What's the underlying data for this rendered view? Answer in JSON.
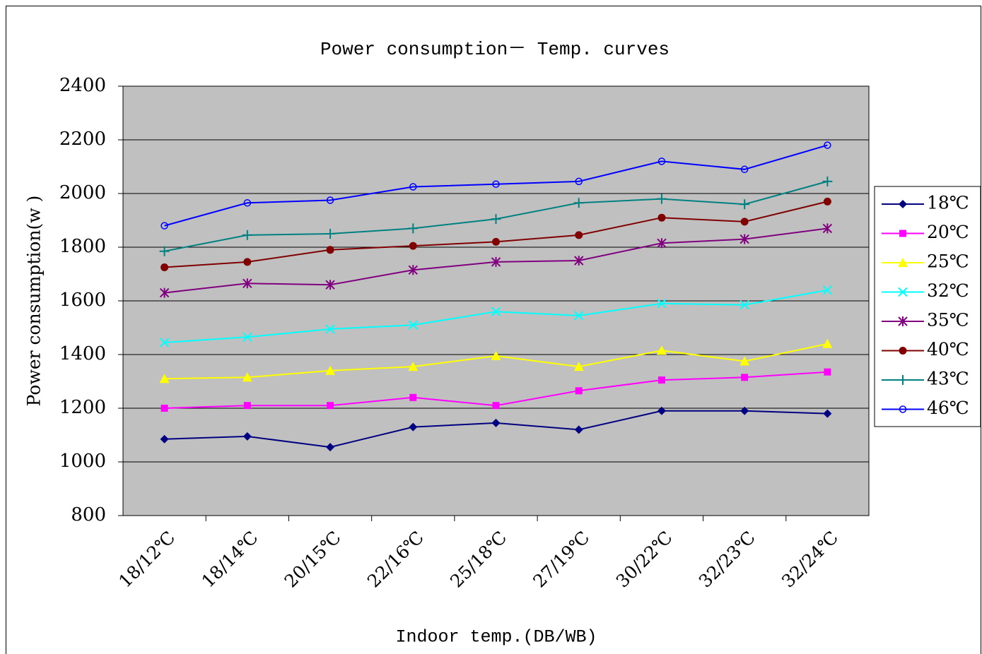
{
  "chart_data": {
    "type": "line",
    "title": "Power consumption－ Temp. curves",
    "y_label": "Power consumption(w )",
    "x_label": "Indoor temp.(DB/WB)",
    "categories": [
      "18/12℃",
      "18/14℃",
      "20/15℃",
      "22/16℃",
      "25/18℃",
      "27/19℃",
      "30/22℃",
      "32/23℃",
      "32/24℃"
    ],
    "ylim": [
      800,
      2400
    ],
    "yticks": [
      800,
      1000,
      1200,
      1400,
      1600,
      1800,
      2000,
      2200,
      2400
    ],
    "grid": true,
    "legend": "right",
    "series": [
      {
        "name": "18℃",
        "color": "#000080",
        "marker": "diamond",
        "values": [
          1085,
          1095,
          1055,
          1130,
          1145,
          1120,
          1190,
          1190,
          1180
        ]
      },
      {
        "name": "20℃",
        "color": "#ff00ff",
        "marker": "square",
        "values": [
          1200,
          1210,
          1210,
          1240,
          1210,
          1265,
          1305,
          1315,
          1335
        ]
      },
      {
        "name": "25℃",
        "color": "#ffff00",
        "marker": "triangle",
        "values": [
          1310,
          1315,
          1340,
          1355,
          1395,
          1355,
          1415,
          1375,
          1440
        ]
      },
      {
        "name": "32℃",
        "color": "#00ffff",
        "marker": "x",
        "values": [
          1445,
          1465,
          1495,
          1510,
          1560,
          1545,
          1590,
          1585,
          1640
        ]
      },
      {
        "name": "35℃",
        "color": "#800080",
        "marker": "star",
        "values": [
          1630,
          1665,
          1660,
          1715,
          1745,
          1750,
          1815,
          1830,
          1870
        ]
      },
      {
        "name": "40℃",
        "color": "#800000",
        "marker": "circle",
        "values": [
          1725,
          1745,
          1790,
          1805,
          1820,
          1845,
          1910,
          1895,
          1970
        ]
      },
      {
        "name": "43℃",
        "color": "#008080",
        "marker": "plus",
        "values": [
          1785,
          1845,
          1850,
          1870,
          1905,
          1965,
          1980,
          1960,
          2045
        ]
      },
      {
        "name": "46℃",
        "color": "#0000ff",
        "marker": "open-circle",
        "values": [
          1880,
          1965,
          1975,
          2025,
          2035,
          2045,
          2120,
          2090,
          2180
        ]
      }
    ]
  }
}
